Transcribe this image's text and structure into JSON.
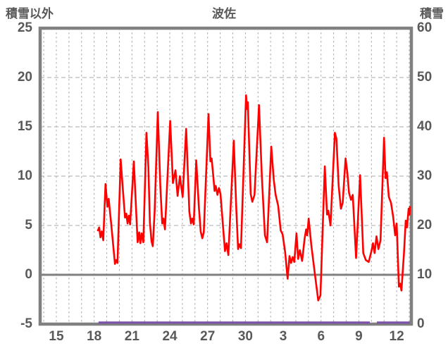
{
  "header": {
    "left_axis_title": "積雪以外",
    "chart_title": "波佐",
    "right_axis_title": "積雪"
  },
  "chart_data": {
    "type": "line",
    "title": "波佐",
    "x_axis": {
      "tick_labels": [
        "15",
        "18",
        "21",
        "24",
        "27",
        "30",
        "3",
        "6",
        "9",
        "12"
      ],
      "tick_positions_day": [
        0,
        3,
        6,
        9,
        12,
        15,
        18,
        21,
        24,
        27
      ],
      "minor_gridline_every_day": true,
      "gridline_day_range": [
        -1,
        28
      ]
    },
    "left_y_axis": {
      "label": "積雪以外",
      "ticks": [
        25,
        20,
        15,
        10,
        5,
        0,
        -5
      ],
      "range": [
        -5,
        25
      ],
      "dashed_gridlines_at": [
        20,
        15,
        10,
        5
      ],
      "solid_line_at": 0
    },
    "right_y_axis": {
      "label": "積雪",
      "ticks": [
        60,
        50,
        40,
        30,
        20,
        10,
        0
      ],
      "range": [
        0,
        60
      ]
    },
    "series": [
      {
        "name": "積雪以外",
        "axis": "left",
        "color": "#FF0000",
        "points": [
          [
            3.3,
            4.5
          ],
          [
            3.4,
            4.8
          ],
          [
            3.5,
            3.8
          ],
          [
            3.6,
            4.4
          ],
          [
            3.72,
            3.5
          ],
          [
            3.9,
            9.2
          ],
          [
            4.05,
            6.9
          ],
          [
            4.15,
            7.7
          ],
          [
            4.35,
            5.2
          ],
          [
            4.65,
            1.1
          ],
          [
            4.75,
            1.5
          ],
          [
            4.85,
            1.2
          ],
          [
            5.1,
            11.7
          ],
          [
            5.3,
            8.3
          ],
          [
            5.45,
            5.8
          ],
          [
            5.55,
            6.2
          ],
          [
            5.65,
            5.2
          ],
          [
            5.75,
            6.0
          ],
          [
            5.85,
            5.1
          ],
          [
            6.15,
            11.5
          ],
          [
            6.35,
            6.0
          ],
          [
            6.45,
            3.3
          ],
          [
            6.57,
            4.3
          ],
          [
            6.67,
            3.2
          ],
          [
            6.77,
            4.2
          ],
          [
            6.9,
            3.3
          ],
          [
            7.15,
            14.4
          ],
          [
            7.3,
            11.0
          ],
          [
            7.42,
            5.3
          ],
          [
            7.55,
            3.4
          ],
          [
            7.65,
            2.9
          ],
          [
            7.8,
            6.5
          ],
          [
            8.05,
            16.5
          ],
          [
            8.25,
            9.0
          ],
          [
            8.4,
            5.2
          ],
          [
            8.5,
            5.7
          ],
          [
            8.62,
            4.6
          ],
          [
            9.03,
            15.6
          ],
          [
            9.25,
            9.3
          ],
          [
            9.45,
            10.6
          ],
          [
            9.62,
            8.0
          ],
          [
            9.8,
            10.0
          ],
          [
            10.02,
            7.9
          ],
          [
            10.3,
            14.8
          ],
          [
            10.55,
            6.4
          ],
          [
            10.68,
            5.2
          ],
          [
            10.78,
            5.7
          ],
          [
            10.9,
            5.1
          ],
          [
            11.1,
            11.6
          ],
          [
            11.3,
            7.0
          ],
          [
            11.45,
            4.4
          ],
          [
            11.58,
            3.7
          ],
          [
            11.7,
            4.3
          ],
          [
            12.07,
            16.3
          ],
          [
            12.22,
            11.5
          ],
          [
            12.32,
            11.8
          ],
          [
            12.45,
            10.0
          ],
          [
            12.55,
            8.5
          ],
          [
            12.65,
            9.0
          ],
          [
            12.78,
            8.1
          ],
          [
            12.9,
            8.8
          ],
          [
            13.02,
            8.2
          ],
          [
            13.22,
            5.0
          ],
          [
            13.38,
            2.4
          ],
          [
            13.5,
            3.2
          ],
          [
            13.65,
            2.0
          ],
          [
            14.08,
            13.6
          ],
          [
            14.28,
            6.6
          ],
          [
            14.42,
            2.6
          ],
          [
            14.52,
            3.1
          ],
          [
            14.65,
            2.7
          ],
          [
            15.05,
            18.2
          ],
          [
            15.13,
            16.8
          ],
          [
            15.19,
            17.5
          ],
          [
            15.42,
            8.2
          ],
          [
            15.55,
            7.4
          ],
          [
            15.72,
            8.1
          ],
          [
            16.08,
            17.2
          ],
          [
            16.3,
            10.0
          ],
          [
            16.55,
            4.0
          ],
          [
            16.72,
            3.3
          ],
          [
            17.05,
            13.0
          ],
          [
            17.25,
            9.6
          ],
          [
            17.4,
            8.1
          ],
          [
            17.6,
            7.0
          ],
          [
            17.8,
            4.5
          ],
          [
            17.95,
            4.1
          ],
          [
            18.15,
            2.3
          ],
          [
            18.35,
            -0.4
          ],
          [
            18.5,
            1.9
          ],
          [
            18.62,
            1.2
          ],
          [
            18.75,
            1.8
          ],
          [
            18.88,
            1.3
          ],
          [
            19.05,
            4.2
          ],
          [
            19.18,
            1.6
          ],
          [
            19.32,
            2.5
          ],
          [
            19.5,
            1.4
          ],
          [
            19.7,
            3.7
          ],
          [
            19.82,
            4.6
          ],
          [
            19.9,
            4.0
          ],
          [
            20.02,
            5.7
          ],
          [
            20.22,
            3.1
          ],
          [
            20.5,
            0.2
          ],
          [
            20.78,
            -2.6
          ],
          [
            20.95,
            -2.1
          ],
          [
            21.3,
            11.0
          ],
          [
            21.48,
            6.1
          ],
          [
            21.58,
            6.5
          ],
          [
            21.75,
            5.0
          ],
          [
            22.1,
            14.4
          ],
          [
            22.22,
            13.8
          ],
          [
            22.4,
            9.0
          ],
          [
            22.58,
            6.7
          ],
          [
            22.72,
            7.3
          ],
          [
            22.95,
            11.8
          ],
          [
            23.08,
            10.4
          ],
          [
            23.22,
            8.3
          ],
          [
            23.38,
            7.6
          ],
          [
            23.52,
            8.1
          ],
          [
            23.78,
            1.7
          ],
          [
            24.1,
            10.1
          ],
          [
            24.35,
            2.2
          ],
          [
            24.55,
            1.5
          ],
          [
            24.78,
            1.3
          ],
          [
            25.0,
            2.4
          ],
          [
            25.12,
            3.2
          ],
          [
            25.25,
            2.2
          ],
          [
            25.4,
            3.9
          ],
          [
            25.55,
            2.6
          ],
          [
            25.72,
            3.5
          ],
          [
            26.0,
            13.9
          ],
          [
            26.12,
            9.8
          ],
          [
            26.22,
            10.4
          ],
          [
            26.38,
            7.9
          ],
          [
            26.55,
            7.3
          ],
          [
            26.72,
            5.9
          ],
          [
            26.88,
            4.0
          ],
          [
            27.0,
            5.2
          ],
          [
            27.18,
            -1.2
          ],
          [
            27.28,
            -0.9
          ],
          [
            27.38,
            -1.6
          ],
          [
            27.58,
            2.2
          ],
          [
            27.72,
            5.5
          ],
          [
            27.82,
            4.8
          ],
          [
            27.95,
            6.7
          ],
          [
            28.03,
            6.1
          ],
          [
            28.05,
            6.9
          ]
        ]
      },
      {
        "name": "積雪",
        "axis": "right",
        "color": "#7B52A8",
        "constant_value": 0,
        "segments_day": [
          [
            3.35,
            24.87
          ],
          [
            25.43,
            28.05
          ]
        ]
      }
    ],
    "grid": true,
    "legend": "none"
  },
  "colors": {
    "background": "#FFFFFF",
    "border_axis": "#808080",
    "zero_line": "#808080",
    "gridline": "#A8A8A8",
    "text": "#595959",
    "temperature_line": "#FF0000",
    "snow_line": "#7B52A8"
  }
}
